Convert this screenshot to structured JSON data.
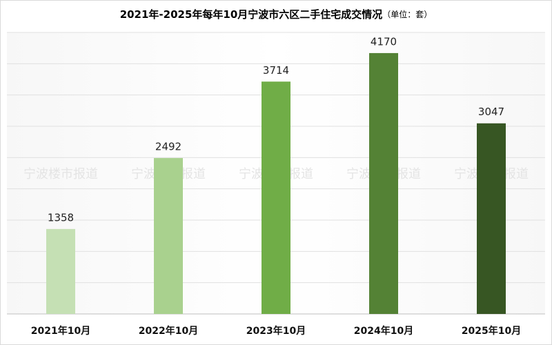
{
  "chart_data": {
    "type": "bar",
    "title": "2021年-2025年每年10月宁波市六区二手住宅成交情况",
    "unit": "（单位：套）",
    "watermark": "宁波楼市报道",
    "categories": [
      "2021年10月",
      "2022年10月",
      "2023年10月",
      "2024年10月",
      "2025年10月"
    ],
    "values": [
      1358,
      2492,
      3714,
      4170,
      3047
    ],
    "colors": [
      "#c5e0b4",
      "#a9d18e",
      "#70ad47",
      "#548235",
      "#375623"
    ],
    "ylim": [
      0,
      4500
    ],
    "yticks": [
      0,
      500,
      1000,
      1500,
      2000,
      2500,
      3000,
      3500,
      4000,
      4500
    ],
    "grid": true
  }
}
